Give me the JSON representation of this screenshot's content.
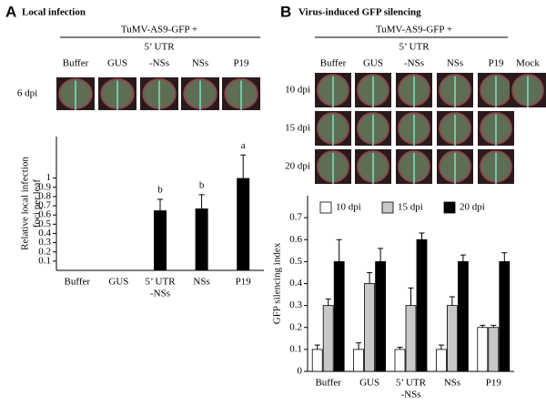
{
  "panel_a": {
    "letter": "A",
    "title": "Local infection",
    "construct": "TuMV-AS9-GFP +",
    "columns": [
      "Buffer",
      "GUS",
      [
        "5’ UTR",
        "-NSs"
      ],
      "NSs",
      "P19"
    ],
    "rows": [
      "6 dpi"
    ]
  },
  "panel_b": {
    "letter": "B",
    "title": "Virus-induced GFP  silencing",
    "construct": "TuMV-AS9-GFP +",
    "columns": [
      "Buffer",
      "GUS",
      [
        "5’ UTR",
        "-NSs"
      ],
      "NSs",
      "P19",
      "Mock"
    ],
    "rows": [
      "10 dpi",
      "15 dpi",
      "20 dpi"
    ]
  },
  "chart_data": [
    {
      "type": "bar",
      "ylabel": [
        "Relative local infection",
        "foci per leaf"
      ],
      "categories": [
        "Buffer",
        "GUS",
        [
          "5’ UTR",
          "-NSs"
        ],
        "NSs",
        "P19"
      ],
      "values": [
        0,
        0,
        0.65,
        0.67,
        1.0
      ],
      "errors": [
        null,
        null,
        0.12,
        0.15,
        0.25
      ],
      "letters": [
        null,
        null,
        "b",
        "b",
        "a"
      ],
      "color": "#000000",
      "ylim": [
        0,
        1.45
      ],
      "yticks": [
        0.1,
        0.2,
        0.3,
        0.4,
        0.5,
        0.6,
        0.7,
        0.8,
        0.9,
        1
      ]
    },
    {
      "type": "grouped_bar",
      "ylabel": "GFP silencing index",
      "categories": [
        "Buffer",
        "GUS",
        [
          "5’ UTR",
          "-NSs"
        ],
        "NSs",
        "P19"
      ],
      "series": [
        {
          "name": "10 dpi",
          "color": "#ffffff",
          "values": [
            0.1,
            0.1,
            0.1,
            0.1,
            0.2
          ],
          "errors": [
            0.02,
            0.03,
            0.01,
            0.02,
            0.01
          ]
        },
        {
          "name": "15 dpi",
          "color": "#c8c8c8",
          "values": [
            0.3,
            0.4,
            0.3,
            0.3,
            0.2
          ],
          "errors": [
            0.03,
            0.05,
            0.08,
            0.04,
            0.01
          ]
        },
        {
          "name": "20 dpi",
          "color": "#000000",
          "values": [
            0.5,
            0.5,
            0.6,
            0.5,
            0.5
          ],
          "errors": [
            0.1,
            0.06,
            0.03,
            0.03,
            0.04
          ]
        }
      ],
      "ylim": [
        0,
        0.8
      ],
      "yticks": [
        0,
        0.1,
        0.2,
        0.3,
        0.4,
        0.5,
        0.6,
        0.7
      ],
      "legend": "top"
    }
  ]
}
